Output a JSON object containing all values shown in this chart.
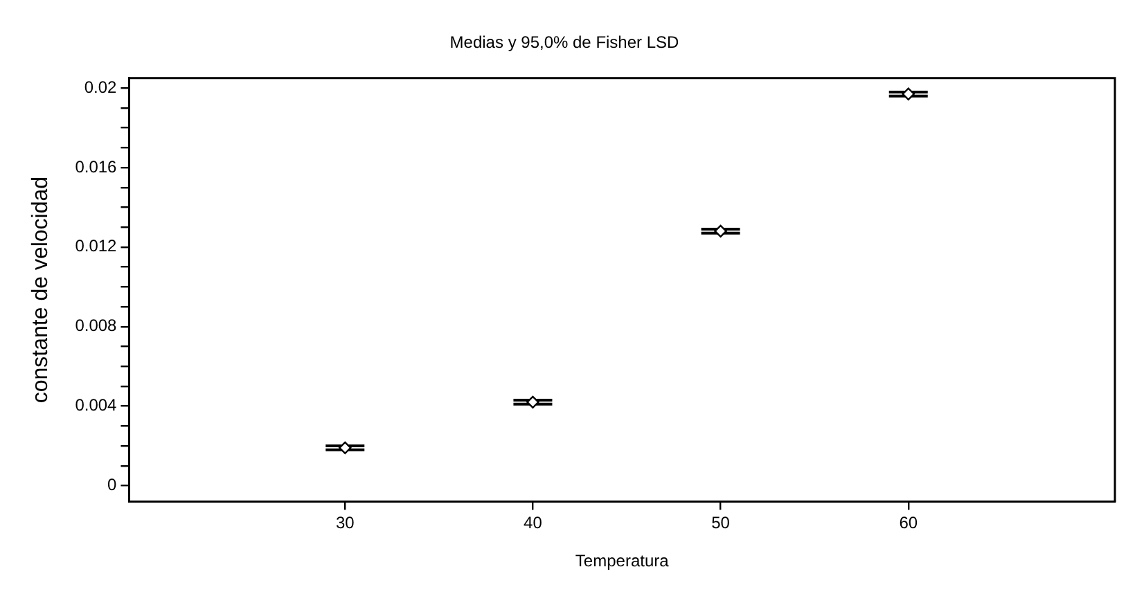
{
  "chart_data": {
    "type": "scatter",
    "title": "Medias y 95,0% de Fisher LSD",
    "xlabel": "Temperatura",
    "ylabel": "constante de velocidad",
    "x": [
      30,
      40,
      50,
      60
    ],
    "series": [
      {
        "color": "#000000",
        "values": [
          0.0019,
          0.0042,
          0.0128,
          0.0197
        ],
        "errors": [
          0.0001,
          0.0001,
          0.0001,
          0.0001
        ]
      }
    ],
    "xlim": [
      18.5,
      71
    ],
    "xticks": [
      30,
      40,
      50,
      60
    ],
    "ylim": [
      -0.0008,
      0.0205
    ],
    "yticks": [
      0,
      {
        "value": 0.001,
        "label": null
      },
      {
        "value": 0.002,
        "label": null
      },
      {
        "value": 0.003,
        "label": null
      },
      0.004,
      {
        "value": 0.005,
        "label": null
      },
      {
        "value": 0.006,
        "label": null
      },
      {
        "value": 0.007,
        "label": null
      },
      0.008,
      {
        "value": 0.009,
        "label": null
      },
      {
        "value": 0.01,
        "label": null
      },
      {
        "value": 0.011,
        "label": null
      },
      0.012,
      {
        "value": 0.013,
        "label": null
      },
      {
        "value": 0.014,
        "label": null
      },
      {
        "value": 0.015,
        "label": null
      },
      0.016,
      {
        "value": 0.017,
        "label": null
      },
      {
        "value": 0.018,
        "label": null
      },
      {
        "value": 0.019,
        "label": null
      },
      0.02
    ],
    "marker": "diamond",
    "grid": false,
    "legend": false
  }
}
